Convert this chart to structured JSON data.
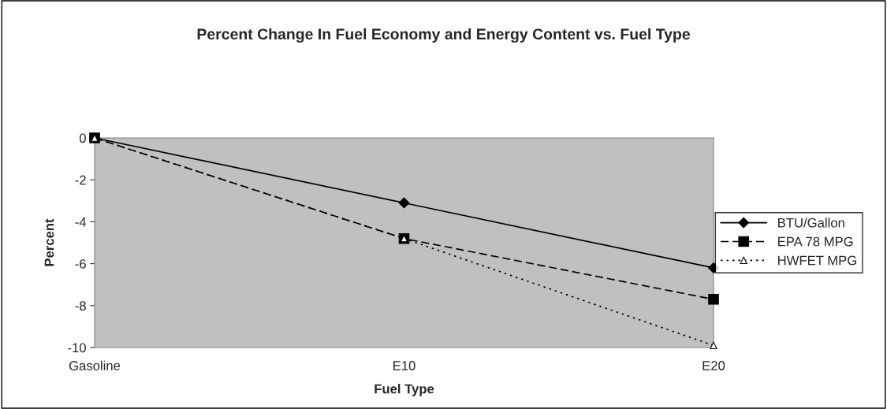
{
  "chart_data": {
    "type": "line",
    "title": "Percent Change In Fuel Economy and Energy Content vs. Fuel Type",
    "xlabel": "Fuel Type",
    "ylabel": "Percent",
    "categories": [
      "Gasoline",
      "E10",
      "E20"
    ],
    "series": [
      {
        "name": "BTU/Gallon",
        "color": "#000000",
        "values": [
          0,
          -3.1,
          -6.2
        ],
        "marker": "diamond",
        "line_style": "solid"
      },
      {
        "name": "EPA 78 MPG",
        "color": "#000000",
        "values": [
          0,
          -4.8,
          -7.7
        ],
        "marker": "square",
        "line_style": "dashed"
      },
      {
        "name": "HWFET MPG",
        "color": "#000000",
        "values": [
          0,
          -4.8,
          -9.9
        ],
        "marker": "triangle",
        "line_style": "dotted"
      }
    ],
    "ylim": [
      -10,
      0
    ],
    "yticks": [
      -10,
      -8,
      -6,
      -4,
      -2,
      0
    ],
    "grid": false,
    "legend": "right"
  }
}
